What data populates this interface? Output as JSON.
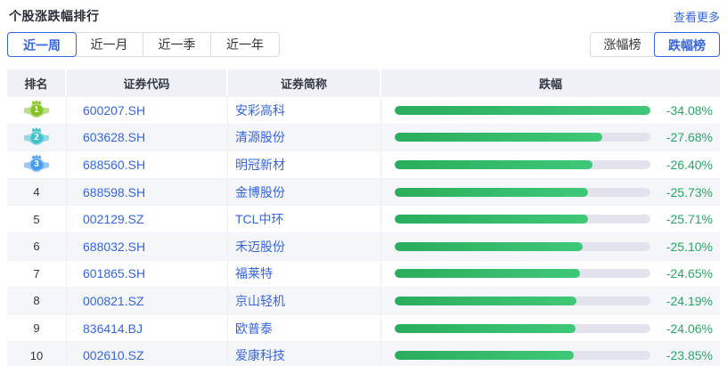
{
  "page": {
    "title": "个股涨跌幅排行",
    "view_more": "查看更多"
  },
  "period_tabs": [
    {
      "label": "近一周",
      "selected": true
    },
    {
      "label": "近一月",
      "selected": false
    },
    {
      "label": "近一季",
      "selected": false
    },
    {
      "label": "近一年",
      "selected": false
    }
  ],
  "board_tabs": [
    {
      "label": "涨幅榜",
      "selected": false
    },
    {
      "label": "跌幅榜",
      "selected": true
    }
  ],
  "table": {
    "headers": [
      "排名",
      "证券代码",
      "证券简称",
      "跌幅"
    ],
    "max_abs_change_pct": 34.08,
    "rows": [
      {
        "rank": 1,
        "code": "600207.SH",
        "name": "安彩高科",
        "change": "-34.08%",
        "pct": 34.08
      },
      {
        "rank": 2,
        "code": "603628.SH",
        "name": "清源股份",
        "change": "-27.68%",
        "pct": 27.68
      },
      {
        "rank": 3,
        "code": "688560.SH",
        "name": "明冠新材",
        "change": "-26.40%",
        "pct": 26.4
      },
      {
        "rank": 4,
        "code": "688598.SH",
        "name": "金博股份",
        "change": "-25.73%",
        "pct": 25.73
      },
      {
        "rank": 5,
        "code": "002129.SZ",
        "name": "TCL中环",
        "change": "-25.71%",
        "pct": 25.71
      },
      {
        "rank": 6,
        "code": "688032.SH",
        "name": "禾迈股份",
        "change": "-25.10%",
        "pct": 25.1
      },
      {
        "rank": 7,
        "code": "601865.SH",
        "name": "福莱特",
        "change": "-24.65%",
        "pct": 24.65
      },
      {
        "rank": 8,
        "code": "000821.SZ",
        "name": "京山轻机",
        "change": "-24.19%",
        "pct": 24.19
      },
      {
        "rank": 9,
        "code": "836414.BJ",
        "name": "欧普泰",
        "change": "-24.06%",
        "pct": 24.06
      },
      {
        "rank": 10,
        "code": "002610.SZ",
        "name": "爱康科技",
        "change": "-23.85%",
        "pct": 23.85
      }
    ]
  },
  "colors": {
    "accent_blue": "#3565e0",
    "value_green": "#27a863",
    "bar_green_start": "#2aad5d",
    "bar_green_end": "#3fc878",
    "track_bg": "#e2e3ed",
    "header_bg": "#f0f1f6",
    "row_alt_bg": "#f5f6fa",
    "medals": [
      "#85c226",
      "#3fc0cb",
      "#459af2"
    ]
  }
}
